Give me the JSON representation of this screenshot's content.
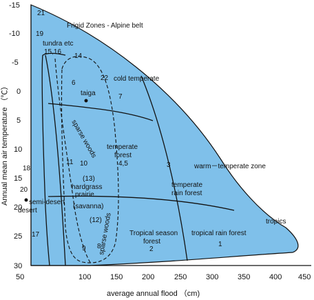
{
  "colors": {
    "region_fill": "#7fc0ea",
    "line": "#111111",
    "background": "#ffffff"
  },
  "axes": {
    "x_title": "average annual flood （cm)",
    "y_title": "Annual mean air temperature （℃）",
    "x_ticks": [
      "50",
      "100",
      "150",
      "200",
      "250",
      "300",
      "350",
      "400",
      "450"
    ],
    "y_ticks": [
      "-15",
      "-10",
      "-5",
      "0",
      "5",
      "10",
      "15",
      "20",
      "25",
      "30"
    ]
  },
  "zones": {
    "frigid": "Frigid Zones - Alpine belt",
    "tundra": "tundra etc",
    "cold_temperate": "cold temperate",
    "taiga": "taiga",
    "sparse_woods_upper": "sparse woods",
    "temperate_forest": "temperate forest 4,5",
    "warm_temperate": "warm－temperate zone",
    "temperate_rain_forest": "temperate rain forest",
    "tropics": "tropics",
    "hardgrass": "hardgrass",
    "prairie": "prairie",
    "savanna": "(savanna)",
    "semi_desert": "semi-desert",
    "desert": "desert",
    "sparse_woods_lower": "sparse woods",
    "tropical_season_forest": "Tropical season forest",
    "tropical_rain_forest": "tropical rain forest"
  },
  "numbers": {
    "n21": "21",
    "n19": "19",
    "n15_16": "15,16",
    "n14": "14",
    "n22": "22",
    "n6": "6",
    "n7": "7",
    "n3": "3",
    "n11": "11",
    "n10": "10",
    "n18": "18",
    "n13": "(13)",
    "n20": "20",
    "n12": "(12)",
    "n17": "17",
    "n9": "9",
    "n8": "8",
    "n2": "2",
    "n1": "1",
    "n4_5": "4,5"
  }
}
